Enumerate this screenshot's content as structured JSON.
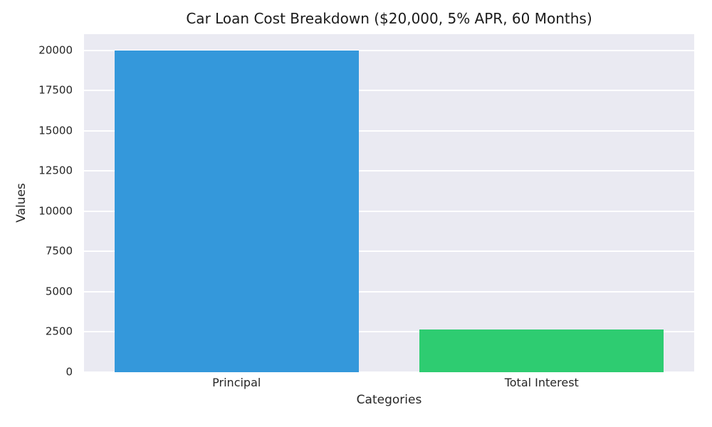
{
  "chart_data": {
    "type": "bar",
    "title": "Car Loan Cost Breakdown ($20,000, 5% APR, 60 Months)",
    "xlabel": "Categories",
    "ylabel": "Values",
    "categories": [
      "Principal",
      "Total Interest"
    ],
    "values": [
      20000,
      2645
    ],
    "ylim": [
      0,
      21000
    ],
    "yticks": [
      0,
      2500,
      5000,
      7500,
      10000,
      12500,
      15000,
      17500,
      20000
    ],
    "bar_colors": [
      "#3498DB",
      "#2ECC71"
    ],
    "plot_bg": "#EAEAF2",
    "grid_color": "#FFFFFF",
    "legend": "none",
    "grid": "horizontal"
  }
}
